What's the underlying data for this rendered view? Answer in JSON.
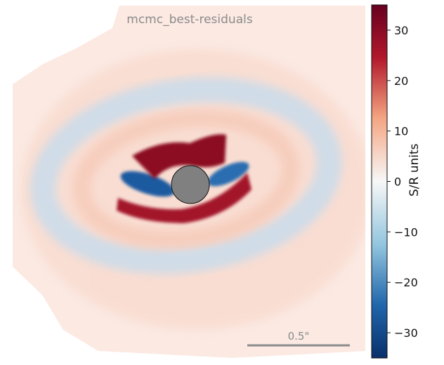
{
  "chart_data": {
    "type": "heatmap",
    "title": "mcmc_best-residuals",
    "colormap": "RdBu_r",
    "colorbar": {
      "label": "S/R units",
      "range": [
        -35,
        35
      ],
      "ticks": [
        30,
        20,
        10,
        0,
        -10,
        -20,
        -30
      ],
      "tick_labels": [
        "30",
        "20",
        "10",
        "0",
        "−10",
        "−20",
        "−30"
      ]
    },
    "scalebar": {
      "label": "0.5\"",
      "length_arcsec": 0.5
    },
    "mask": {
      "shape": "circle",
      "color": "#808080"
    },
    "features": [
      {
        "name": "positive residual arc north of star",
        "value": 35
      },
      {
        "name": "positive residual arc south of star",
        "value": 33
      },
      {
        "name": "negative residual lobes east and west of star",
        "value": -30
      },
      {
        "name": "outer negative ring",
        "value": -6
      },
      {
        "name": "outer positive halo",
        "value": 4
      }
    ]
  }
}
